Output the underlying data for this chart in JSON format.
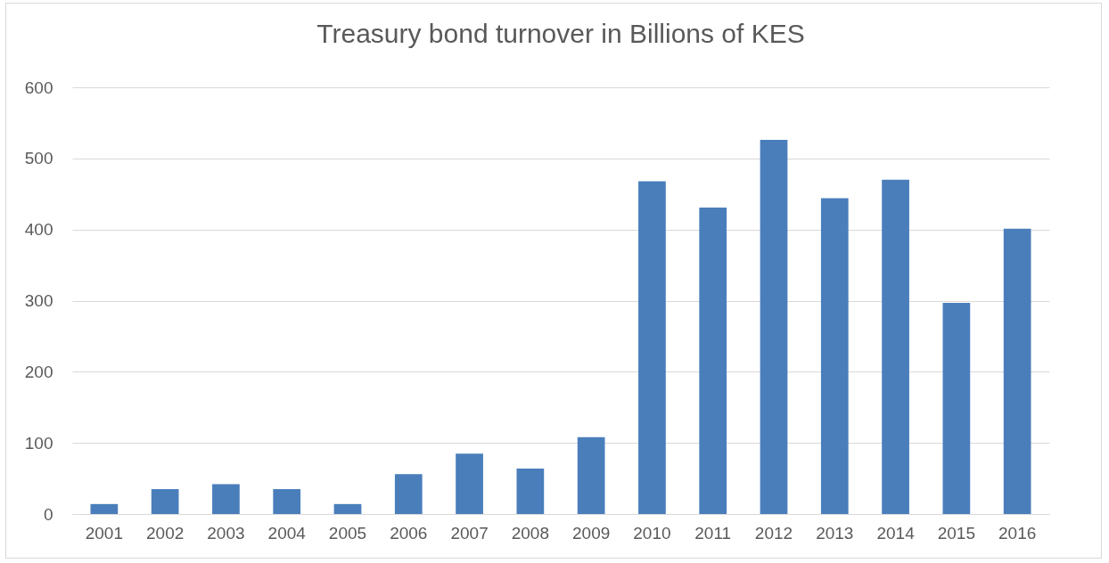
{
  "chart_data": {
    "type": "bar",
    "title": "Treasury bond turnover in Billions of KES",
    "categories": [
      "2001",
      "2002",
      "2003",
      "2004",
      "2005",
      "2006",
      "2007",
      "2008",
      "2009",
      "2010",
      "2011",
      "2012",
      "2013",
      "2014",
      "2015",
      "2016"
    ],
    "values": [
      14,
      35,
      42,
      35,
      14,
      56,
      85,
      64,
      108,
      468,
      431,
      526,
      444,
      470,
      297,
      401
    ],
    "color": "#4a7ebb",
    "ylim": [
      0,
      600
    ],
    "yticks": [
      0,
      100,
      200,
      300,
      400,
      500,
      600
    ],
    "grid": "y"
  }
}
